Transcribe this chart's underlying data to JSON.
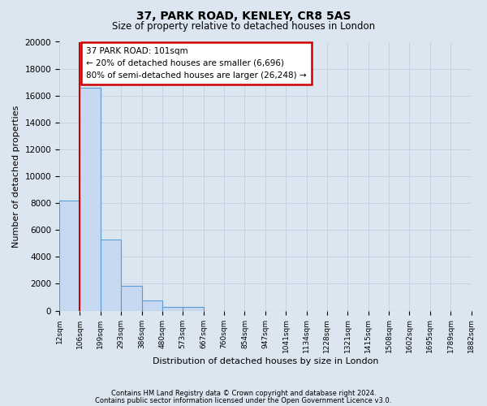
{
  "title": "37, PARK ROAD, KENLEY, CR8 5AS",
  "subtitle": "Size of property relative to detached houses in London",
  "xlabel": "Distribution of detached houses by size in London",
  "ylabel": "Number of detached properties",
  "bar_color": "#c6d9f0",
  "bar_edge_color": "#5b9bd5",
  "bin_labels": [
    "12sqm",
    "106sqm",
    "199sqm",
    "293sqm",
    "386sqm",
    "480sqm",
    "573sqm",
    "667sqm",
    "760sqm",
    "854sqm",
    "947sqm",
    "1041sqm",
    "1134sqm",
    "1228sqm",
    "1321sqm",
    "1415sqm",
    "1508sqm",
    "1602sqm",
    "1695sqm",
    "1789sqm",
    "1882sqm"
  ],
  "bar_values": [
    8200,
    16600,
    5300,
    1850,
    750,
    300,
    250,
    0,
    0,
    0,
    0,
    0,
    0,
    0,
    0,
    0,
    0,
    0,
    0,
    0
  ],
  "ylim": [
    0,
    20000
  ],
  "yticks": [
    0,
    2000,
    4000,
    6000,
    8000,
    10000,
    12000,
    14000,
    16000,
    18000,
    20000
  ],
  "annotation_title": "37 PARK ROAD: 101sqm",
  "annotation_line1": "← 20% of detached houses are smaller (6,696)",
  "annotation_line2": "80% of semi-detached houses are larger (26,248) →",
  "annotation_box_color": "#ffffff",
  "annotation_box_edge_color": "#cc0000",
  "property_line_color": "#cc0000",
  "grid_color": "#c0c8d8",
  "background_color": "#dce6f1",
  "footer1": "Contains HM Land Registry data © Crown copyright and database right 2024.",
  "footer2": "Contains public sector information licensed under the Open Government Licence v3.0."
}
